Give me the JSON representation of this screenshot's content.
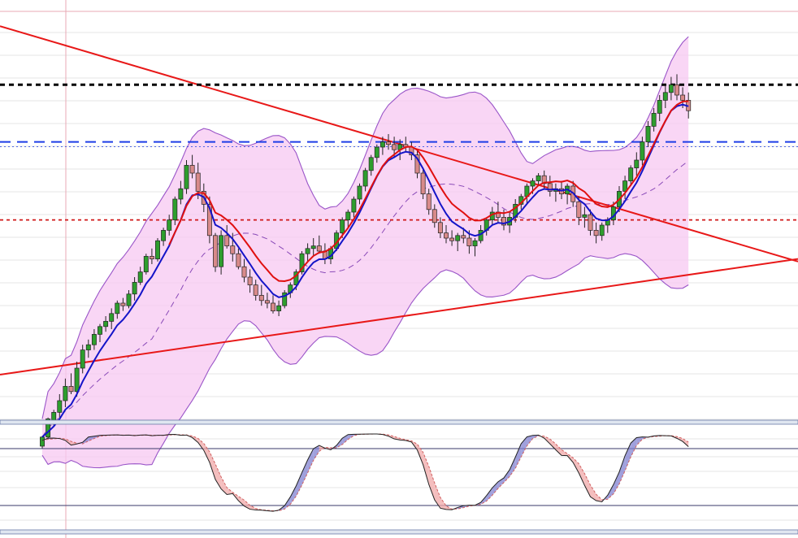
{
  "chart_data": {
    "type": "candlestick",
    "title": "",
    "xlabel": "",
    "ylabel": "",
    "x_count": 116,
    "main_ylim": [
      0,
      100
    ],
    "osc_ylim": [
      0,
      100
    ],
    "colors": {
      "up_candle": "#2e9e2e",
      "down_candle": "#d88a8a",
      "candle_outline": "#222222",
      "band_fill": "#f7c8f2",
      "band_line": "#9a55c8",
      "band_mid": "#8a4ab8",
      "fast_ma": "#1414c8",
      "slow_ma": "#e01010",
      "trendline": "#e81818",
      "resistance": "#000000",
      "mid_level": "#1e3ee6",
      "support": "#d01818",
      "cursor": "#e8aab4",
      "osc_line": "#222222",
      "osc_signal": "#d06060",
      "osc_fill_up": "#8080d0",
      "osc_fill_down": "#f0a8a8",
      "grid": "#e6e6e6"
    },
    "candles": [
      [
        0,
        -20,
        -12,
        -22,
        -13
      ],
      [
        1,
        -13,
        2,
        -15,
        1
      ],
      [
        2,
        0,
        8,
        -5,
        6
      ],
      [
        3,
        6,
        20,
        2,
        15
      ],
      [
        4,
        15,
        32,
        10,
        26
      ],
      [
        5,
        26,
        36,
        20,
        22
      ],
      [
        6,
        22,
        45,
        18,
        40
      ],
      [
        7,
        40,
        58,
        36,
        54
      ],
      [
        8,
        54,
        62,
        48,
        58
      ],
      [
        9,
        58,
        70,
        54,
        66
      ],
      [
        10,
        66,
        74,
        60,
        72
      ],
      [
        11,
        72,
        80,
        68,
        76
      ],
      [
        12,
        76,
        86,
        70,
        82
      ],
      [
        13,
        82,
        92,
        78,
        90
      ],
      [
        14,
        90,
        94,
        84,
        88
      ],
      [
        15,
        88,
        100,
        86,
        97
      ],
      [
        16,
        97,
        110,
        92,
        106
      ],
      [
        17,
        106,
        118,
        104,
        114
      ],
      [
        18,
        114,
        128,
        112,
        126
      ],
      [
        19,
        126,
        132,
        120,
        124
      ],
      [
        20,
        124,
        140,
        122,
        138
      ],
      [
        21,
        138,
        148,
        134,
        146
      ],
      [
        22,
        146,
        158,
        142,
        154
      ],
      [
        23,
        154,
        172,
        150,
        170
      ],
      [
        24,
        170,
        184,
        166,
        178
      ],
      [
        25,
        178,
        200,
        174,
        196
      ],
      [
        26,
        196,
        204,
        186,
        190
      ],
      [
        27,
        190,
        198,
        170,
        176
      ],
      [
        28,
        176,
        182,
        160,
        166
      ],
      [
        29,
        166,
        172,
        136,
        142
      ],
      [
        30,
        142,
        144,
        114,
        118
      ],
      [
        31,
        118,
        146,
        112,
        142
      ],
      [
        32,
        142,
        150,
        132,
        134
      ],
      [
        33,
        134,
        144,
        122,
        128
      ],
      [
        34,
        128,
        132,
        116,
        118
      ],
      [
        35,
        118,
        124,
        106,
        110
      ],
      [
        36,
        110,
        116,
        98,
        104
      ],
      [
        37,
        104,
        108,
        92,
        96
      ],
      [
        38,
        96,
        104,
        88,
        92
      ],
      [
        39,
        92,
        98,
        86,
        90
      ],
      [
        40,
        90,
        96,
        82,
        84
      ],
      [
        41,
        84,
        92,
        80,
        88
      ],
      [
        42,
        88,
        100,
        86,
        98
      ],
      [
        43,
        98,
        106,
        94,
        104
      ],
      [
        44,
        104,
        116,
        100,
        114
      ],
      [
        45,
        114,
        130,
        112,
        128
      ],
      [
        46,
        128,
        136,
        122,
        132
      ],
      [
        47,
        132,
        140,
        126,
        134
      ],
      [
        48,
        134,
        142,
        128,
        130
      ],
      [
        49,
        130,
        136,
        120,
        124
      ],
      [
        50,
        124,
        134,
        120,
        132
      ],
      [
        51,
        132,
        146,
        130,
        144
      ],
      [
        52,
        144,
        156,
        140,
        154
      ],
      [
        53,
        154,
        162,
        148,
        160
      ],
      [
        54,
        160,
        172,
        156,
        170
      ],
      [
        55,
        170,
        182,
        166,
        180
      ],
      [
        56,
        180,
        194,
        176,
        192
      ],
      [
        57,
        192,
        204,
        188,
        202
      ],
      [
        58,
        202,
        212,
        198,
        210
      ],
      [
        59,
        210,
        218,
        204,
        214
      ],
      [
        60,
        214,
        220,
        208,
        212
      ],
      [
        61,
        212,
        218,
        202,
        208
      ],
      [
        62,
        208,
        216,
        200,
        212
      ],
      [
        63,
        212,
        218,
        206,
        210
      ],
      [
        64,
        210,
        214,
        200,
        204
      ],
      [
        65,
        204,
        208,
        186,
        190
      ],
      [
        66,
        190,
        194,
        170,
        174
      ],
      [
        67,
        174,
        178,
        158,
        162
      ],
      [
        68,
        162,
        166,
        148,
        152
      ],
      [
        69,
        152,
        156,
        140,
        144
      ],
      [
        70,
        144,
        150,
        136,
        140
      ],
      [
        71,
        140,
        146,
        134,
        138
      ],
      [
        72,
        138,
        144,
        130,
        142
      ],
      [
        73,
        142,
        148,
        136,
        140
      ],
      [
        74,
        140,
        146,
        128,
        134
      ],
      [
        75,
        134,
        140,
        126,
        138
      ],
      [
        76,
        138,
        150,
        136,
        146
      ],
      [
        77,
        146,
        156,
        142,
        154
      ],
      [
        78,
        154,
        164,
        150,
        160
      ],
      [
        79,
        160,
        168,
        152,
        156
      ],
      [
        80,
        156,
        162,
        146,
        150
      ],
      [
        81,
        150,
        160,
        144,
        156
      ],
      [
        82,
        156,
        170,
        152,
        166
      ],
      [
        83,
        166,
        174,
        162,
        172
      ],
      [
        84,
        172,
        182,
        166,
        180
      ],
      [
        85,
        180,
        186,
        174,
        184
      ],
      [
        86,
        184,
        190,
        180,
        188
      ],
      [
        87,
        188,
        192,
        178,
        182
      ],
      [
        88,
        182,
        188,
        172,
        176
      ],
      [
        89,
        176,
        182,
        168,
        178
      ],
      [
        90,
        178,
        184,
        170,
        174
      ],
      [
        91,
        174,
        182,
        166,
        180
      ],
      [
        92,
        180,
        184,
        164,
        168
      ],
      [
        93,
        168,
        172,
        150,
        156
      ],
      [
        94,
        156,
        164,
        148,
        158
      ],
      [
        95,
        158,
        162,
        142,
        146
      ],
      [
        96,
        146,
        152,
        136,
        142
      ],
      [
        97,
        142,
        152,
        138,
        150
      ],
      [
        98,
        150,
        156,
        144,
        154
      ],
      [
        99,
        154,
        168,
        150,
        164
      ],
      [
        100,
        164,
        180,
        160,
        176
      ],
      [
        101,
        176,
        188,
        170,
        184
      ],
      [
        102,
        184,
        196,
        180,
        194
      ],
      [
        103,
        194,
        206,
        188,
        200
      ],
      [
        104,
        200,
        218,
        196,
        214
      ],
      [
        105,
        214,
        230,
        210,
        226
      ],
      [
        106,
        226,
        240,
        222,
        236
      ],
      [
        107,
        236,
        250,
        230,
        246
      ],
      [
        108,
        246,
        258,
        240,
        252
      ],
      [
        109,
        252,
        264,
        246,
        258
      ],
      [
        110,
        258,
        266,
        246,
        250
      ],
      [
        111,
        250,
        256,
        240,
        246
      ],
      [
        112,
        246,
        252,
        232,
        238
      ]
    ],
    "levels": {
      "resistance": 258,
      "mid_level": 214,
      "support": 154
    }
  }
}
